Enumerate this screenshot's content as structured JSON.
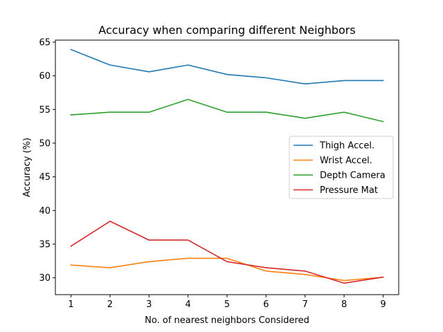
{
  "chart_data": {
    "type": "line",
    "title": "Accuracy when comparing different Neighbors",
    "xlabel": "No. of nearest neighbors Considered",
    "ylabel": "Accuracy (%)",
    "x": [
      1,
      2,
      3,
      4,
      5,
      6,
      7,
      8,
      9
    ],
    "xlim": [
      0.6,
      9.4
    ],
    "ylim": [
      27.5,
      65.3
    ],
    "xticks": [
      1,
      2,
      3,
      4,
      5,
      6,
      7,
      8,
      9
    ],
    "yticks": [
      30,
      35,
      40,
      45,
      50,
      55,
      60,
      65
    ],
    "grid": false,
    "legend_position": "center-right",
    "series": [
      {
        "name": "Thigh Accel.",
        "color": "#1f77b4",
        "values": [
          63.9,
          61.6,
          60.6,
          61.6,
          60.2,
          59.7,
          58.8,
          59.3,
          59.3
        ]
      },
      {
        "name": "Wrist Accel.",
        "color": "#ff7f0e",
        "values": [
          31.9,
          31.5,
          32.4,
          32.9,
          32.9,
          31.0,
          30.5,
          29.6,
          30.1
        ]
      },
      {
        "name": "Depth Camera",
        "color": "#2ca02c",
        "values": [
          54.2,
          54.6,
          54.6,
          56.5,
          54.6,
          54.6,
          53.7,
          54.6,
          53.2
        ]
      },
      {
        "name": "Pressure Mat",
        "color": "#d62728",
        "values": [
          34.7,
          38.4,
          35.6,
          35.6,
          32.4,
          31.5,
          31.0,
          29.2,
          30.1
        ]
      }
    ]
  }
}
